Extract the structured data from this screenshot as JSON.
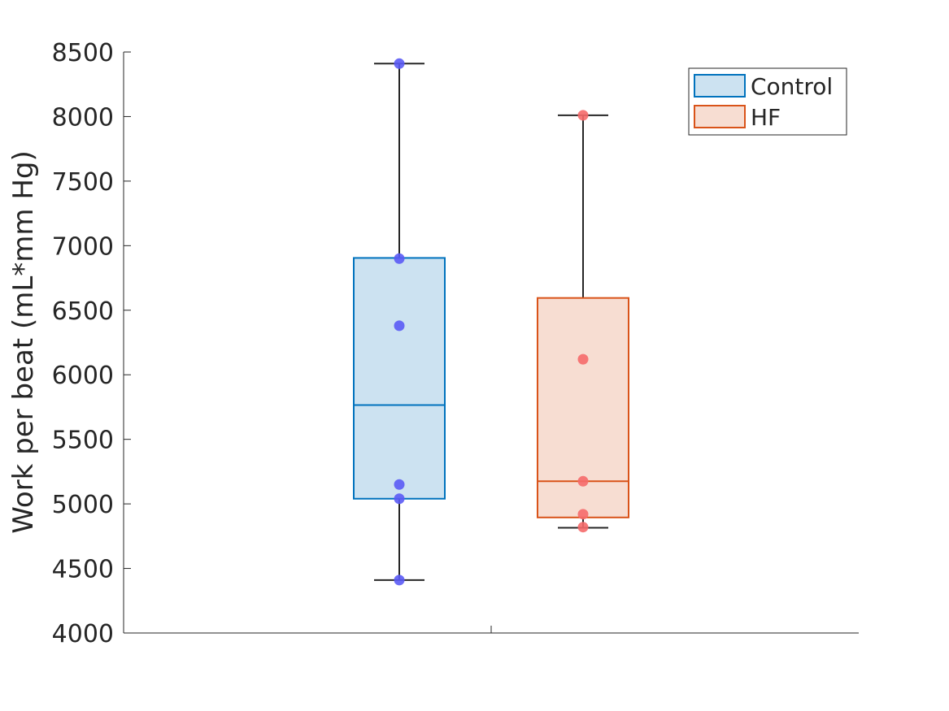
{
  "chart_data": {
    "type": "box",
    "title": "",
    "xlabel": "",
    "ylabel": "Work per beat (mL*mm Hg)",
    "ylim": [
      4000,
      8500
    ],
    "yticks": [
      4000,
      4500,
      5000,
      5500,
      6000,
      6500,
      7000,
      7500,
      8000,
      8500
    ],
    "grid": false,
    "legend_position": "top-right",
    "series": [
      {
        "name": "Control",
        "edge_color": "#0072BD",
        "fill_color": "#CCE2F1",
        "point_color": "#5B5BF5",
        "whisker_low": 4410,
        "q1": 5040,
        "median": 5765,
        "q3": 6905,
        "whisker_high": 8410,
        "points": [
          8410,
          6900,
          6380,
          5150,
          5040,
          4410
        ]
      },
      {
        "name": "HF",
        "edge_color": "#D95319",
        "fill_color": "#F7DDD2",
        "point_color": "#F56A6A",
        "whisker_low": 4815,
        "q1": 4895,
        "median": 5175,
        "q3": 6595,
        "whisker_high": 8010,
        "points": [
          8010,
          6120,
          5175,
          4920,
          4820
        ]
      }
    ]
  }
}
